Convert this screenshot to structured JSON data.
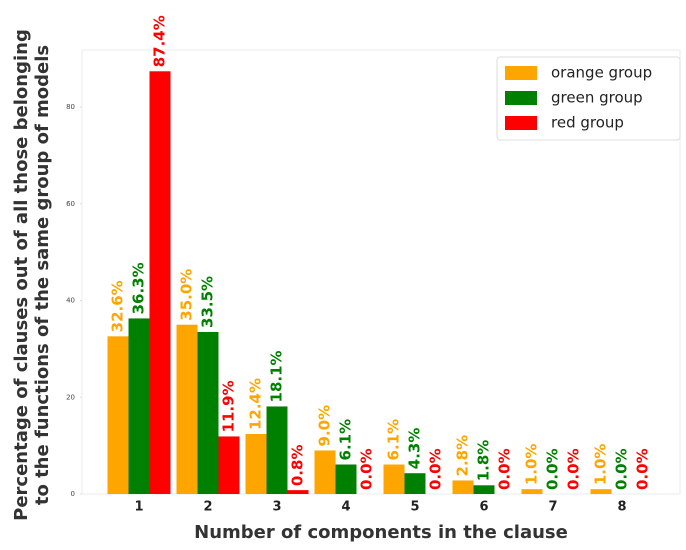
{
  "chart_data": {
    "type": "bar",
    "xlabel": "Number of components in the clause",
    "ylabel": [
      "Percentage of clauses out of all those belonging",
      "to the functions of the same group of models"
    ],
    "categories": [
      "1",
      "2",
      "3",
      "4",
      "5",
      "6",
      "7",
      "8"
    ],
    "series": [
      {
        "name": "orange group",
        "color": "#ffa500",
        "values": [
          32.6,
          35.0,
          12.4,
          9.0,
          6.1,
          2.8,
          1.0,
          1.0
        ],
        "value_labels": [
          "32.6%",
          "35.0%",
          "12.4%",
          "9.0%",
          "6.1%",
          "2.8%",
          "1.0%",
          "1.0%"
        ]
      },
      {
        "name": "green group",
        "color": "#008000",
        "values": [
          36.3,
          33.5,
          18.1,
          6.1,
          4.3,
          1.8,
          0.0,
          0.0
        ],
        "value_labels": [
          "36.3%",
          "33.5%",
          "18.1%",
          "6.1%",
          "4.3%",
          "1.8%",
          "0.0%",
          "0.0%"
        ]
      },
      {
        "name": "red group",
        "color": "#ff0000",
        "values": [
          87.4,
          11.9,
          0.8,
          0.0,
          0.0,
          0.0,
          0.0,
          0.0
        ],
        "value_labels": [
          "87.4%",
          "11.9%",
          "0.8%",
          "0.0%",
          "0.0%",
          "0.0%",
          "0.0%",
          "0.0%"
        ]
      }
    ],
    "ylim": [
      0,
      91.8
    ],
    "yticks": [
      0,
      20,
      40,
      60,
      80
    ],
    "legend": "upper right"
  }
}
